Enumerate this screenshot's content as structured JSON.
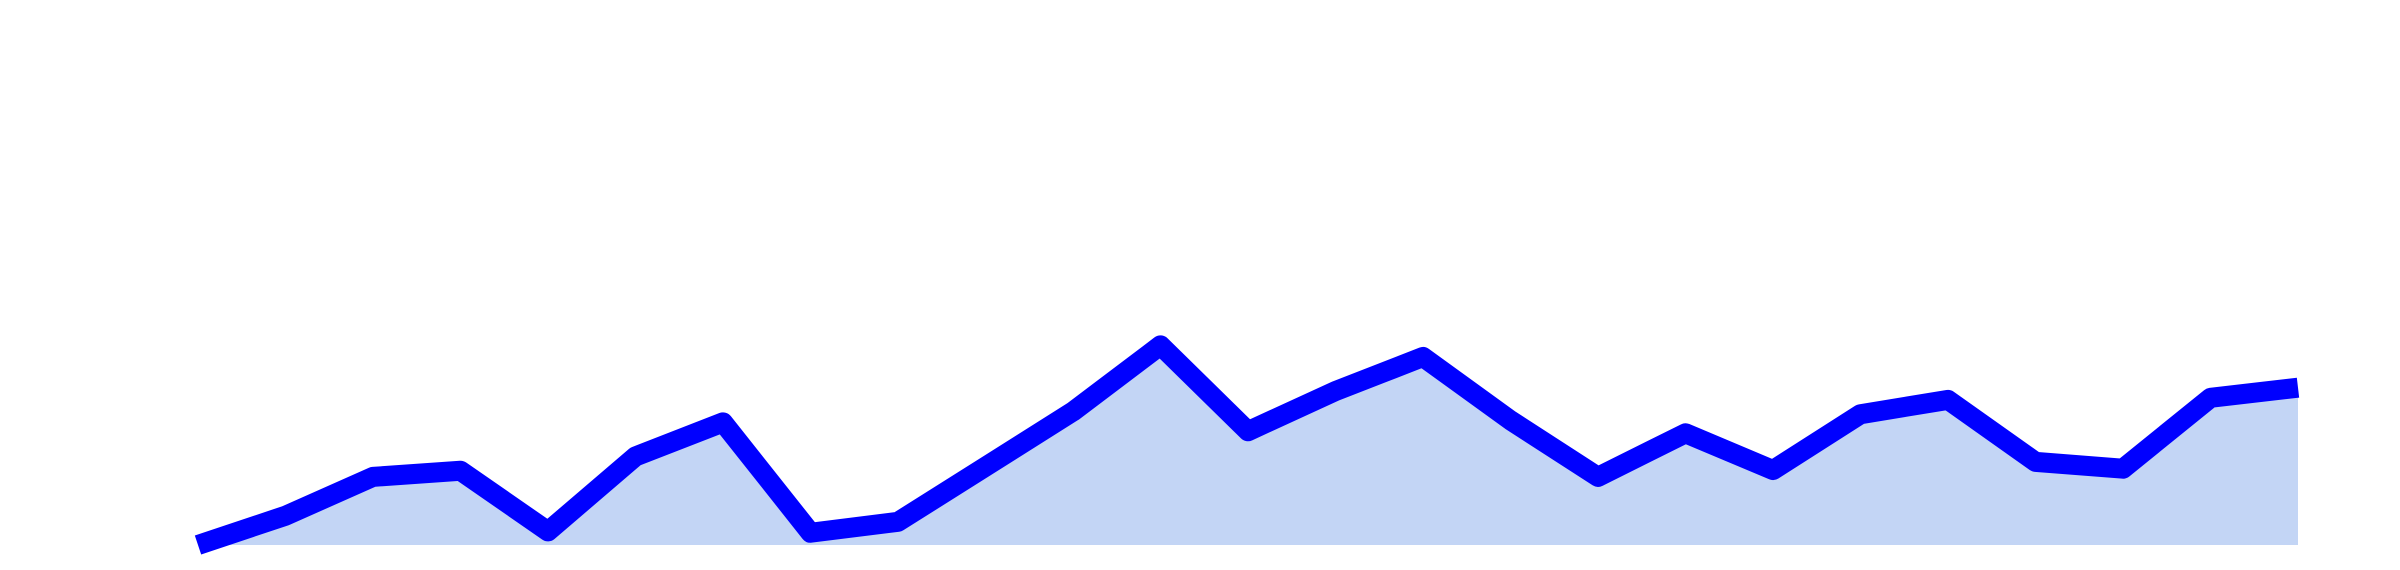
{
  "chart_data": {
    "type": "area",
    "x": [
      1,
      2,
      3,
      4,
      5,
      6,
      7,
      8,
      9,
      10,
      11,
      12,
      13,
      14,
      15,
      16,
      17,
      18,
      19,
      20,
      21,
      22,
      23,
      24,
      25
    ],
    "series": [
      {
        "values": [
          0.0,
          4.3,
          10.0,
          10.9,
          2.0,
          13.0,
          18.0,
          1.8,
          3.4,
          11.5,
          19.6,
          29.3,
          16.7,
          22.6,
          27.6,
          18.3,
          10.0,
          16.4,
          11.0,
          19.2,
          21.3,
          12.2,
          11.2,
          21.6,
          23.1
        ],
        "line_color": "#0000ff",
        "fill_color": "#c3d5f5"
      }
    ],
    "title": "",
    "xlabel": "",
    "ylabel": "",
    "xlim": [
      1,
      25
    ],
    "ylim": [
      0,
      80
    ],
    "grid": false,
    "axes_visible": false,
    "legend": "none"
  }
}
